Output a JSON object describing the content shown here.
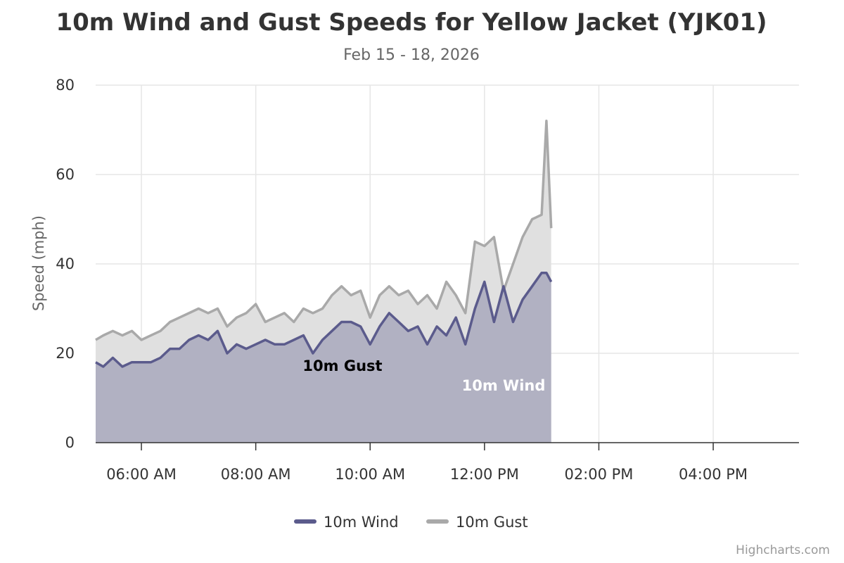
{
  "chart_data": {
    "type": "area",
    "title": "10m Wind and Gust Speeds for Yellow Jacket (YJK01)",
    "subtitle": "Feb 15 - 18, 2026",
    "ylabel": "Speed (mph)",
    "xlabel": "",
    "xlim": [
      "05:12",
      "17:30"
    ],
    "ylim": [
      0,
      80
    ],
    "y_ticks": [
      0,
      20,
      40,
      60,
      80
    ],
    "x_ticks": [
      "06:00 AM",
      "08:00 AM",
      "10:00 AM",
      "12:00 PM",
      "02:00 PM",
      "04:00 PM"
    ],
    "grid": true,
    "legend": "bottom-center",
    "credits": "Highcharts.com",
    "colors": {
      "wind": "#5b5b8c",
      "wind_fill": "#b1b1c2",
      "gust": "#a9a9a9",
      "gust_fill": "#e0e0e0"
    },
    "series": [
      {
        "name": "10m Wind",
        "label": "10m Wind",
        "x": [
          "05:12",
          "05:20",
          "05:30",
          "05:40",
          "05:50",
          "06:00",
          "06:10",
          "06:20",
          "06:30",
          "06:40",
          "06:50",
          "07:00",
          "07:10",
          "07:20",
          "07:30",
          "07:40",
          "07:50",
          "08:00",
          "08:10",
          "08:20",
          "08:30",
          "08:40",
          "08:50",
          "09:00",
          "09:10",
          "09:20",
          "09:30",
          "09:40",
          "09:50",
          "10:00",
          "10:10",
          "10:20",
          "10:30",
          "10:40",
          "10:50",
          "11:00",
          "11:10",
          "11:20",
          "11:30",
          "11:40",
          "11:50",
          "12:00",
          "12:10",
          "12:20",
          "12:30",
          "12:40",
          "12:50",
          "13:00",
          "13:05",
          "13:10"
        ],
        "values": [
          18,
          17,
          19,
          17,
          18,
          18,
          18,
          19,
          21,
          21,
          23,
          24,
          23,
          25,
          20,
          22,
          21,
          22,
          23,
          22,
          22,
          23,
          24,
          20,
          23,
          25,
          27,
          27,
          26,
          22,
          26,
          29,
          27,
          25,
          26,
          22,
          26,
          24,
          28,
          22,
          30,
          36,
          27,
          35,
          27,
          32,
          35,
          38,
          38,
          36
        ]
      },
      {
        "name": "10m Gust",
        "label": "10m Gust",
        "x": [
          "05:12",
          "05:20",
          "05:30",
          "05:40",
          "05:50",
          "06:00",
          "06:10",
          "06:20",
          "06:30",
          "06:40",
          "06:50",
          "07:00",
          "07:10",
          "07:20",
          "07:30",
          "07:40",
          "07:50",
          "08:00",
          "08:10",
          "08:20",
          "08:30",
          "08:40",
          "08:50",
          "09:00",
          "09:10",
          "09:20",
          "09:30",
          "09:40",
          "09:50",
          "10:00",
          "10:10",
          "10:20",
          "10:30",
          "10:40",
          "10:50",
          "11:00",
          "11:10",
          "11:20",
          "11:30",
          "11:40",
          "11:50",
          "12:00",
          "12:10",
          "12:20",
          "12:30",
          "12:40",
          "12:50",
          "13:00",
          "13:05",
          "13:10"
        ],
        "values": [
          23,
          24,
          25,
          24,
          25,
          23,
          24,
          25,
          27,
          28,
          29,
          30,
          29,
          30,
          26,
          28,
          29,
          31,
          27,
          28,
          29,
          27,
          30,
          29,
          30,
          33,
          35,
          33,
          34,
          28,
          33,
          35,
          33,
          34,
          31,
          33,
          30,
          36,
          33,
          29,
          45,
          44,
          46,
          34,
          40,
          46,
          50,
          51,
          72,
          48
        ]
      }
    ]
  }
}
